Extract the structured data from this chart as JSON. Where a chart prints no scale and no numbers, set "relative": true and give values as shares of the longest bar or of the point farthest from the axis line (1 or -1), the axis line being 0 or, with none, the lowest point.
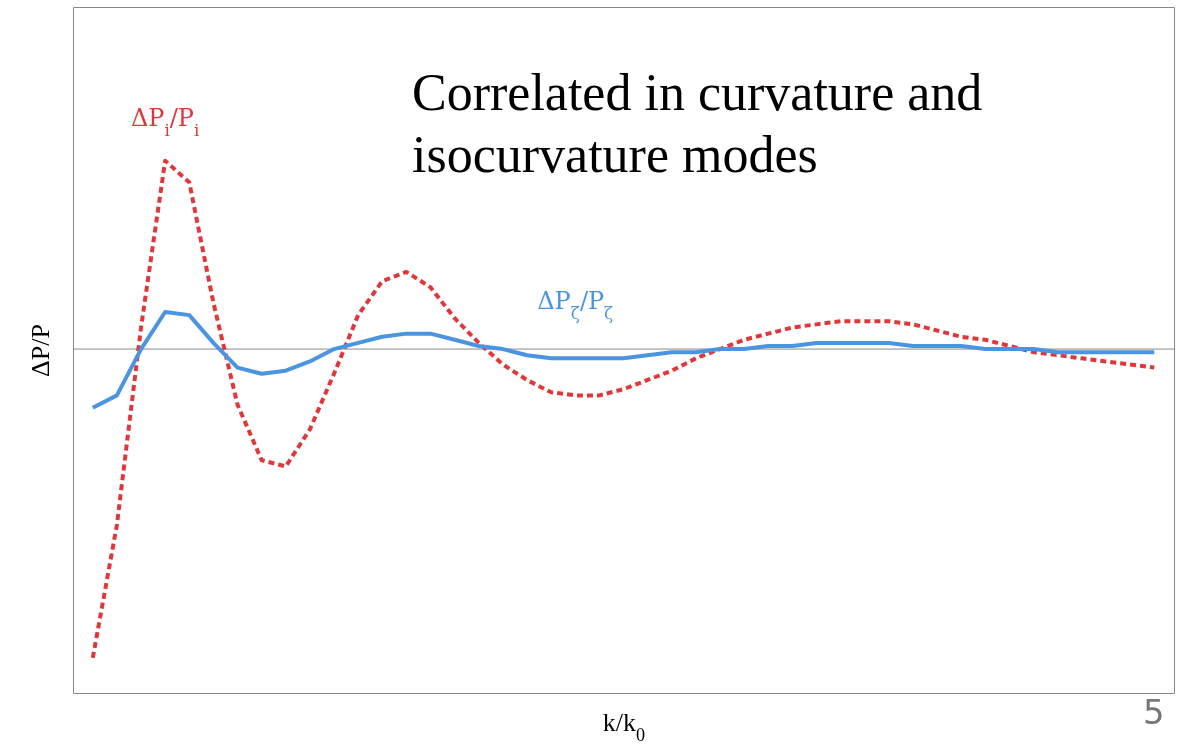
{
  "chart_data": {
    "type": "line",
    "title": "Correlated in curvature and isocurvature modes",
    "xlabel": "k/k$_{0}$",
    "ylabel": "ΔP/P",
    "relative": true,
    "legend": false,
    "marker": "none",
    "grid": false,
    "tick_labels": false,
    "annotations": [
      "5"
    ],
    "categories": [
      null,
      null,
      null,
      null,
      null,
      null,
      null,
      null,
      null,
      null,
      null,
      null,
      null,
      null,
      null,
      null,
      null,
      null,
      null,
      null,
      null,
      null,
      null,
      null,
      null,
      null,
      null,
      null,
      null,
      null,
      null,
      null,
      null,
      null,
      null,
      null,
      null,
      null,
      null,
      null,
      null,
      null,
      null,
      null,
      null
    ],
    "series": [
      {
        "name": "ΔP$_{i}$/P$_{i}$",
        "color": "#e0383a",
        "line_style": "dashed",
        "values": [
          -1.0,
          -0.57,
          0.07,
          0.61,
          0.54,
          0.15,
          -0.18,
          -0.36,
          -0.38,
          -0.26,
          -0.08,
          0.11,
          0.22,
          0.25,
          0.2,
          0.1,
          0.02,
          -0.05,
          -0.1,
          -0.14,
          -0.15,
          -0.15,
          -0.13,
          -0.1,
          -0.07,
          -0.03,
          0.0,
          0.03,
          0.05,
          0.07,
          0.08,
          0.09,
          0.09,
          0.09,
          0.08,
          0.06,
          0.04,
          0.03,
          0.01,
          -0.01,
          -0.02,
          -0.03,
          -0.04,
          -0.05,
          -0.06
        ]
      },
      {
        "name": "ΔP$_{ζ}$/P$_{ζ}$",
        "color": "#4a94e0",
        "line_style": "solid",
        "values": [
          -0.19,
          -0.15,
          0.0,
          0.12,
          0.11,
          0.02,
          -0.06,
          -0.08,
          -0.07,
          -0.04,
          0.0,
          0.02,
          0.04,
          0.05,
          0.05,
          0.03,
          0.01,
          0.0,
          -0.02,
          -0.03,
          -0.03,
          -0.03,
          -0.03,
          -0.02,
          -0.01,
          -0.01,
          0.0,
          0.0,
          0.01,
          0.01,
          0.02,
          0.02,
          0.02,
          0.02,
          0.01,
          0.01,
          0.01,
          0.0,
          0.0,
          0.0,
          -0.01,
          -0.01,
          -0.01,
          -0.01,
          -0.01
        ]
      }
    ]
  }
}
